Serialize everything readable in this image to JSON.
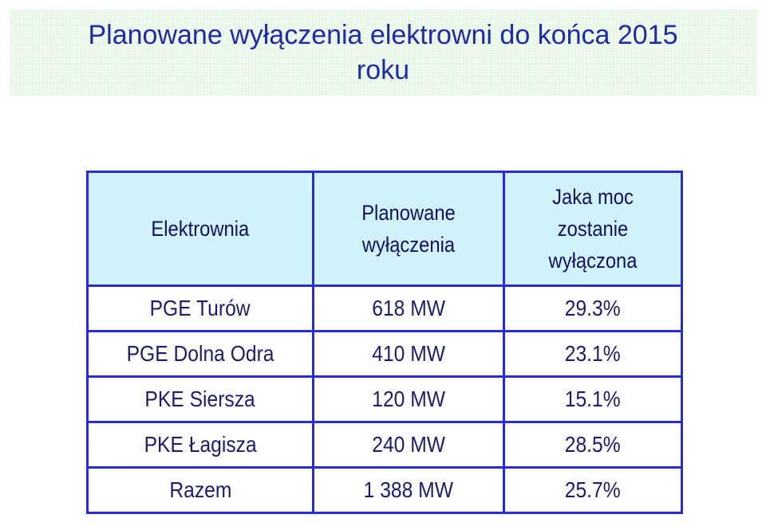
{
  "title": "Planowane wyłączenia elektrowni do końca 2015 roku",
  "table": {
    "headers": [
      "Elektrownia",
      "Planowane wyłączenia",
      "Jaka moc zostanie wyłączona"
    ],
    "rows": [
      [
        "PGE Turów",
        "618 MW",
        "29.3%"
      ],
      [
        "PGE Dolna Odra",
        "410 MW",
        "23.1%"
      ],
      [
        "PKE Siersza",
        "120 MW",
        "15.1%"
      ],
      [
        "PKE Łagisza",
        "240 MW",
        "28.5%"
      ],
      [
        "Razem",
        "1 388 MW",
        "25.7%"
      ]
    ]
  },
  "colors": {
    "title_text": "#1f2aa6",
    "title_band": "#e3f6e3",
    "header_fill": "#d2f2fb",
    "table_border": "#2a2ad8"
  }
}
